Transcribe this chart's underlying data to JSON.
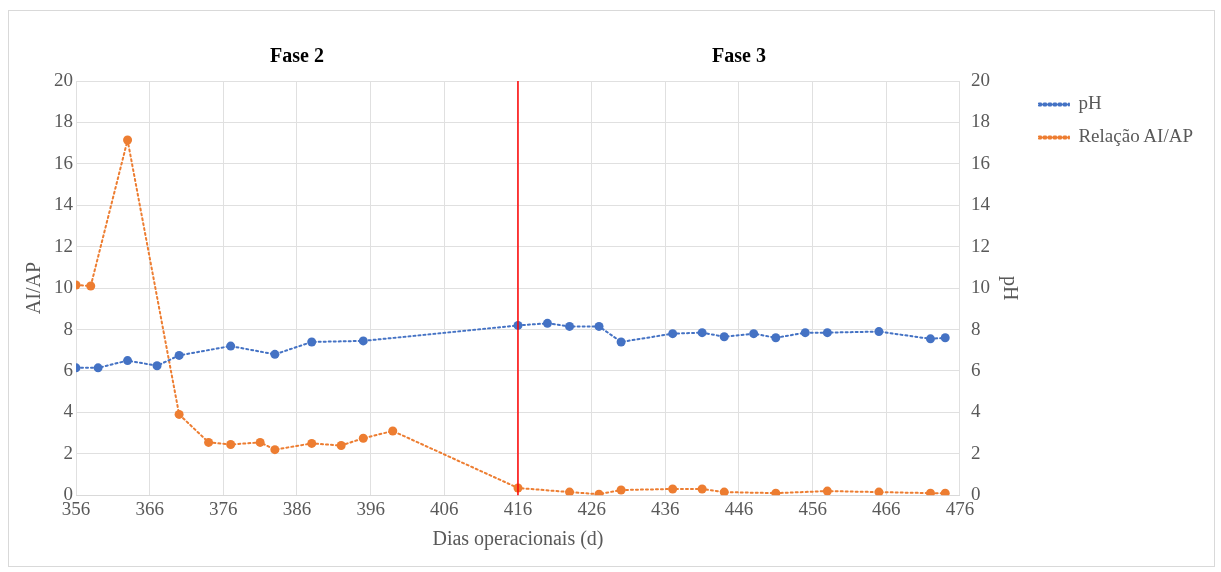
{
  "chart_data": {
    "type": "line",
    "xlabel": "Dias operacionais (d)",
    "ylabel": "AI/AP",
    "y2label": "pH",
    "annotations": [
      "Fase 2",
      "Fase 3"
    ],
    "xlim": [
      356,
      476
    ],
    "xticks": [
      356,
      366,
      376,
      386,
      396,
      406,
      416,
      426,
      436,
      446,
      456,
      466,
      476
    ],
    "ylim": [
      0,
      20
    ],
    "yticks": [
      0,
      2,
      4,
      6,
      8,
      10,
      12,
      14,
      16,
      18,
      20
    ],
    "y2lim": [
      0,
      20
    ],
    "y2ticks": [
      0,
      2,
      4,
      6,
      8,
      10,
      12,
      14,
      16,
      18,
      20
    ],
    "grid": true,
    "legend": "top right",
    "marker": "circle",
    "line_style": "dotted",
    "ref_lines": [
      {
        "axis": "x",
        "value": 416,
        "color": "#ff0000"
      }
    ],
    "series": [
      {
        "name": "pH",
        "color": "#4472c4",
        "x": [
          356,
          359,
          363,
          367,
          370,
          377,
          383,
          388,
          395,
          416,
          420,
          423,
          427,
          430,
          437,
          441,
          444,
          448,
          451,
          455,
          458,
          465,
          472,
          474
        ],
        "values": [
          6.15,
          6.15,
          6.5,
          6.25,
          6.75,
          7.2,
          6.8,
          7.4,
          7.45,
          8.2,
          8.3,
          8.15,
          8.15,
          7.4,
          7.8,
          7.85,
          7.65,
          7.8,
          7.6,
          7.85,
          7.85,
          7.9,
          7.55,
          7.6
        ]
      },
      {
        "name": "Relação AI/AP",
        "color": "#ed7d31",
        "x": [
          356,
          358,
          363,
          370,
          374,
          377,
          381,
          383,
          388,
          392,
          395,
          399,
          416,
          423,
          427,
          430,
          437,
          441,
          444,
          451,
          458,
          465,
          472,
          474
        ],
        "values": [
          10.15,
          10.1,
          17.15,
          3.9,
          2.55,
          2.45,
          2.55,
          2.2,
          2.5,
          2.4,
          2.75,
          3.1,
          0.35,
          0.15,
          0.05,
          0.25,
          0.3,
          0.3,
          0.15,
          0.1,
          0.2,
          0.15,
          0.1,
          0.1
        ]
      }
    ]
  }
}
